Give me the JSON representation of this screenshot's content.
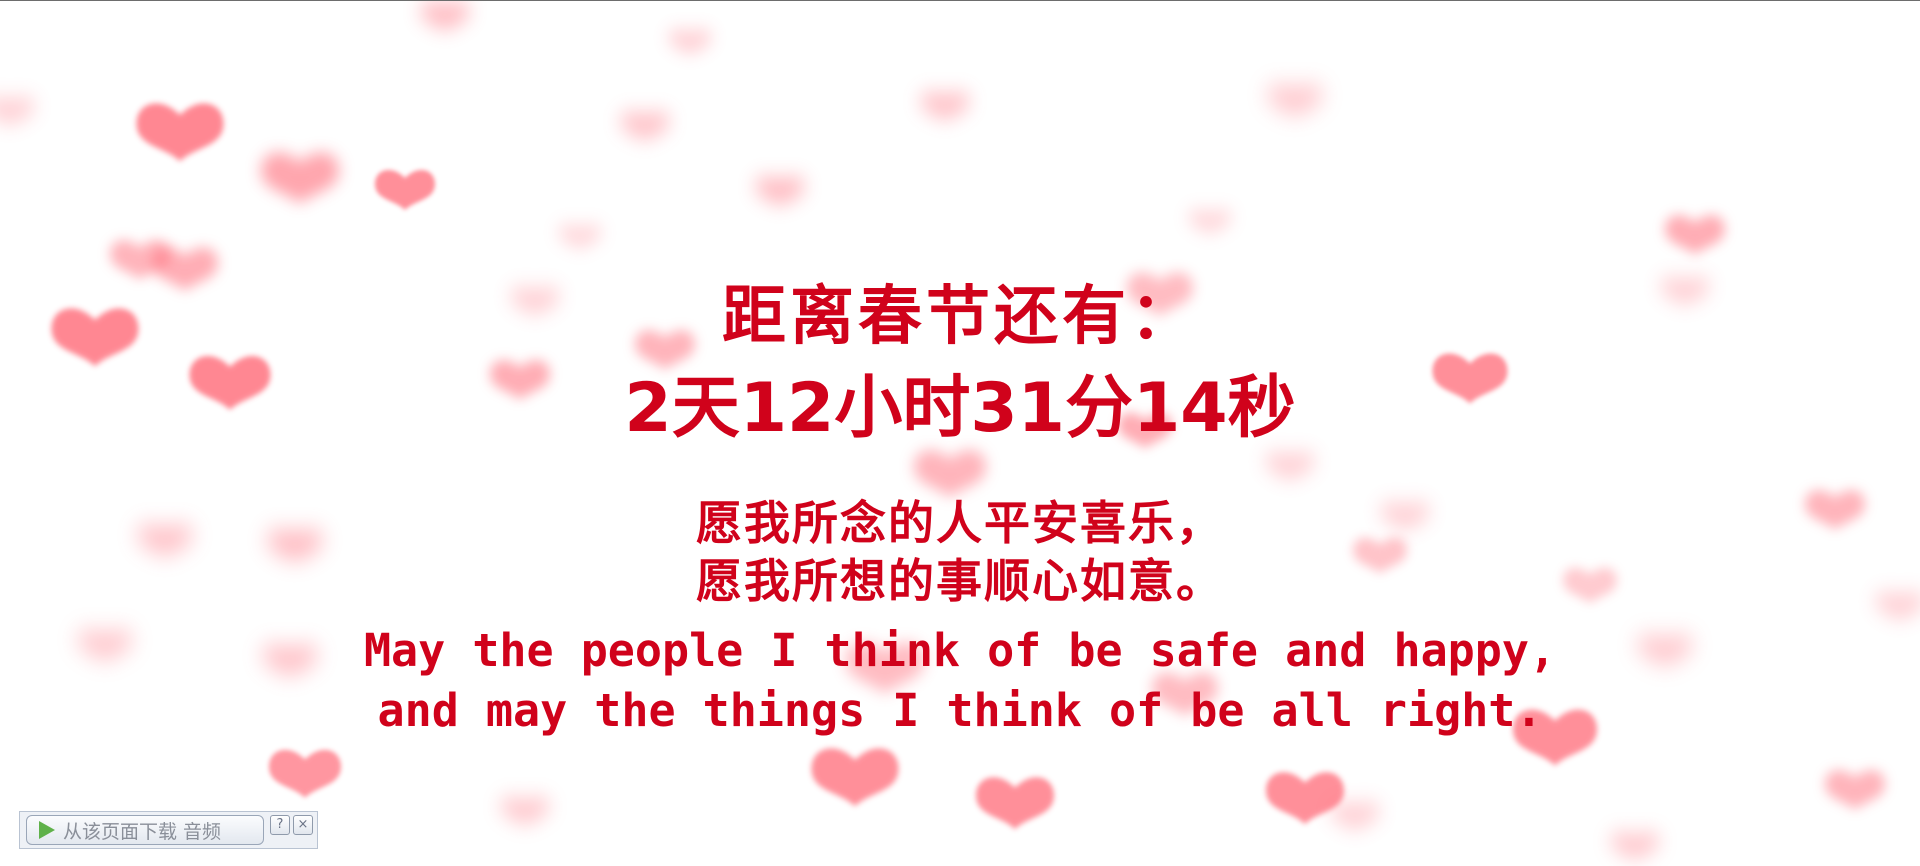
{
  "countdown_page": {
    "title": "距离春节还有：",
    "countdown": "2天12小时31分14秒",
    "wish_zh": [
      "愿我所念的人平安喜乐，",
      "愿我所想的事顺心如意。"
    ],
    "wish_en": [
      "May the people I think of be safe and happy,",
      "and may the things I think of be all right."
    ],
    "text_color": "#d0021b",
    "heart_color": "#ff6b78"
  },
  "audio_bar": {
    "download_label": "从该页面下载 音频",
    "help_label": "?",
    "close_label": "×",
    "play_icon": "play-icon"
  }
}
